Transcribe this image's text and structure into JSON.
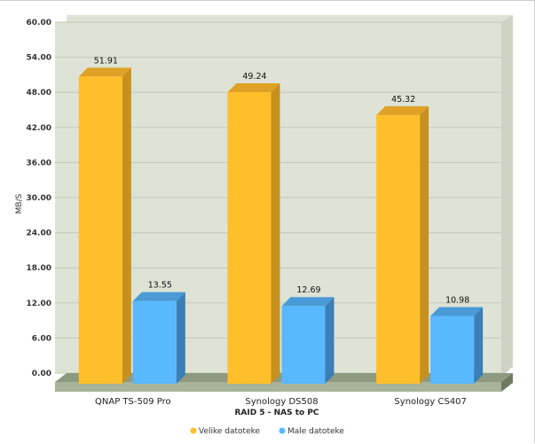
{
  "chart_data": {
    "type": "bar",
    "title": "",
    "categories": [
      "QNAP TS-509 Pro",
      "Synology DS508",
      "Synology CS407"
    ],
    "series": [
      {
        "name": "Velike datoteke",
        "values": [
          51.91,
          49.24,
          45.32
        ],
        "color": "#FFBF2A",
        "side_color": "#C8901C",
        "top_color": "#DFA227"
      },
      {
        "name": "Male datoteke",
        "values": [
          13.55,
          12.69,
          10.98
        ],
        "color": "#59B8FF",
        "side_color": "#3A7FB5",
        "top_color": "#4A9AD8"
      }
    ],
    "xlabel": "RAID 5 - NAS to PC",
    "ylabel": "MB/S",
    "ylim": [
      0,
      60
    ],
    "yticks": [
      "0.00",
      "6.00",
      "12.00",
      "18.00",
      "24.00",
      "30.00",
      "36.00",
      "42.00",
      "48.00",
      "54.00",
      "60.00"
    ],
    "data_labels": [
      [
        "51.91",
        "49.24",
        "45.32"
      ],
      [
        "13.55",
        "12.69",
        "10.98"
      ]
    ],
    "grid": true,
    "legend": "bottom",
    "plot_background": "#DEE3D5",
    "floor_color": "#A8B49A"
  }
}
